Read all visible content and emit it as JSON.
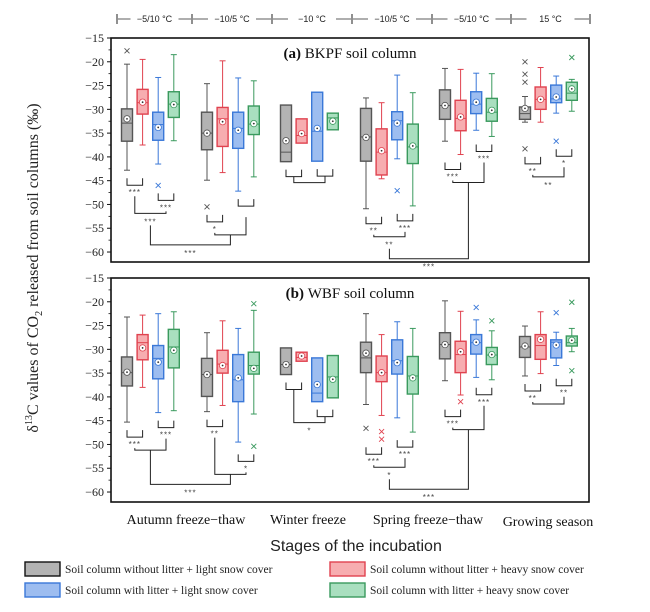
{
  "chart_data": {
    "type": "boxplot",
    "ylabel": "δ13C values of CO2 released from soil columns (‰)",
    "ylabel_parts": {
      "delta": "δ",
      "sup": "13",
      "mid": "C values of CO",
      "sub": "2",
      "tail": " released from soil columns (‰)"
    },
    "xlabel": "Stages of the incubation",
    "ylim": [
      -62,
      -15
    ],
    "yticks": [
      -15,
      -20,
      -25,
      -30,
      -35,
      -40,
      -45,
      -50,
      -55,
      -60
    ],
    "ytick_labels": [
      "−15",
      "−20",
      "−25",
      "−30",
      "−35",
      "−40",
      "−45",
      "−50",
      "−55",
      "−60"
    ],
    "stages": [
      "Autumn freeze−thaw",
      "Winter freeze",
      "Spring freeze−thaw",
      "Growing season"
    ],
    "temperature_periods": [
      "−5/10 °C",
      "−10/5 °C",
      "−10 °C",
      "−10/5 °C",
      "−5/10 °C",
      "15 °C"
    ],
    "series": [
      {
        "name": "Soil column without litter + light snow cover",
        "stroke": "#555555",
        "fill": "#b3b3b3"
      },
      {
        "name": "Soil column without litter + heavy snow cover",
        "stroke": "#e0424f",
        "fill": "#f7adb0"
      },
      {
        "name": "Soil column with litter + light snow cover",
        "stroke": "#3a78d8",
        "fill": "#9dbdf0"
      },
      {
        "name": "Soil column with litter + heavy snow cover",
        "stroke": "#3a9a5e",
        "fill": "#a9dfbf"
      }
    ],
    "panels": [
      {
        "label": "(a)",
        "title": "BKPF soil column",
        "groups": [
          {
            "period": "−5/10 °C",
            "boxes": [
              {
                "lo": -42.8,
                "q1": -36.7,
                "med": -32.9,
                "q3": -29.9,
                "hi": -20.5,
                "mean": -32.0,
                "out": [
                  -17.7
                ]
              },
              {
                "lo": -37.5,
                "q1": -31.0,
                "med": -28.6,
                "q3": -25.8,
                "hi": -19.5,
                "mean": -28.5,
                "out": []
              },
              {
                "lo": -41.5,
                "q1": -36.5,
                "med": -33.2,
                "q3": -30.6,
                "hi": -23.3,
                "mean": -33.8,
                "out": [
                  -46.0
                ]
              },
              {
                "lo": -36.6,
                "q1": -31.7,
                "med": -28.9,
                "q3": -26.3,
                "hi": -18.5,
                "mean": -29.0,
                "out": []
              }
            ]
          },
          {
            "period": "−10/5 °C",
            "boxes": [
              {
                "lo": -44.9,
                "q1": -38.5,
                "med": -35.0,
                "q3": -30.6,
                "hi": -24.6,
                "mean": -35.0,
                "out": [
                  -50.5
                ]
              },
              {
                "lo": -43.3,
                "q1": -37.8,
                "med": -32.0,
                "q3": -29.6,
                "hi": -19.8,
                "mean": -32.6,
                "out": []
              },
              {
                "lo": -47.2,
                "q1": -38.2,
                "med": -34.0,
                "q3": -30.6,
                "hi": -23.4,
                "mean": -34.4,
                "out": []
              },
              {
                "lo": -44.2,
                "q1": -35.3,
                "med": -33.1,
                "q3": -29.3,
                "hi": -24.0,
                "mean": -33.0,
                "out": []
              }
            ]
          },
          {
            "period": "−10 °C",
            "boxes": [
              {
                "lo": -41.0,
                "q1": -41.0,
                "med": -39.0,
                "q3": -29.1,
                "hi": -29.1,
                "mean": -36.6,
                "out": []
              },
              {
                "lo": -37.1,
                "q1": -37.1,
                "med": -35.5,
                "q3": -32.0,
                "hi": -32.0,
                "mean": -35.1,
                "out": []
              },
              {
                "lo": -40.9,
                "q1": -40.9,
                "med": -34.6,
                "q3": -26.4,
                "hi": -26.4,
                "mean": -34.0,
                "out": []
              },
              {
                "lo": -34.3,
                "q1": -34.3,
                "med": -31.8,
                "q3": -30.8,
                "hi": -30.8,
                "mean": -32.5,
                "out": []
              }
            ]
          },
          {
            "period": "−10/5 °C",
            "boxes": [
              {
                "lo": -50.9,
                "q1": -40.9,
                "med": -35.8,
                "q3": -29.8,
                "hi": -27.6,
                "mean": -35.9,
                "out": []
              },
              {
                "lo": -44.6,
                "q1": -43.8,
                "med": -39.0,
                "q3": -34.1,
                "hi": -28.6,
                "mean": -38.7,
                "out": []
              },
              {
                "lo": -40.4,
                "q1": -36.4,
                "med": -32.4,
                "q3": -30.5,
                "hi": -22.8,
                "mean": -32.9,
                "out": [
                  -47.1
                ]
              },
              {
                "lo": -50.3,
                "q1": -41.4,
                "med": -37.9,
                "q3": -33.1,
                "hi": -26.5,
                "mean": -37.7,
                "out": []
              }
            ]
          },
          {
            "period": "−5/10 °C",
            "boxes": [
              {
                "lo": -36.7,
                "q1": -32.1,
                "med": -29.2,
                "q3": -25.9,
                "hi": -21.4,
                "mean": -29.2,
                "out": []
              },
              {
                "lo": -39.5,
                "q1": -34.5,
                "med": -31.9,
                "q3": -28.1,
                "hi": -21.6,
                "mean": -31.6,
                "out": []
              },
              {
                "lo": -34.4,
                "q1": -30.9,
                "med": -28.9,
                "q3": -26.3,
                "hi": -22.4,
                "mean": -28.5,
                "out": []
              },
              {
                "lo": -35.7,
                "q1": -32.5,
                "med": -30.6,
                "q3": -27.7,
                "hi": -22.5,
                "mean": -30.2,
                "out": []
              }
            ]
          },
          {
            "period": "15 °C",
            "boxes": [
              {
                "lo": -32.7,
                "q1": -32.1,
                "med": -30.9,
                "q3": -29.5,
                "hi": -27.3,
                "mean": -29.8,
                "out": [
                  -20.0,
                  -22.6,
                  -24.3,
                  -38.3
                ]
              },
              {
                "lo": -32.7,
                "q1": -30.0,
                "med": -27.9,
                "q3": -25.3,
                "hi": -21.2,
                "mean": -27.9,
                "out": []
              },
              {
                "lo": -30.8,
                "q1": -28.6,
                "med": -27.8,
                "q3": -24.9,
                "hi": -23.0,
                "mean": -27.4,
                "out": [
                  -36.7
                ]
              },
              {
                "lo": -30.4,
                "q1": -28.1,
                "med": -26.6,
                "q3": -24.3,
                "hi": -23.7,
                "mean": -25.7,
                "out": [
                  -19.1
                ]
              }
            ]
          }
        ],
        "brackets": [
          {
            "a": [
              0,
              0,
              1
            ],
            "b": [
              0,
              2,
              3
            ],
            "pair_labels": [
              "***",
              "***"
            ],
            "label": "***"
          },
          {
            "a": [
              1,
              0,
              1
            ],
            "b": [
              1,
              2,
              3
            ],
            "pair_labels": [
              "*",
              ""
            ],
            "label": ""
          },
          {
            "a": [
              2,
              0,
              1
            ],
            "b": [
              2,
              2,
              3
            ],
            "pair_labels": [
              "",
              ""
            ],
            "label": ""
          },
          {
            "a": [
              3,
              0,
              1
            ],
            "b": [
              3,
              2,
              3
            ],
            "pair_labels": [
              "**",
              "***"
            ],
            "label": "**"
          },
          {
            "a": [
              4,
              0,
              1
            ],
            "b": [
              4,
              2,
              3
            ],
            "pair_labels": [
              "***",
              "***"
            ],
            "label": ""
          },
          {
            "a": [
              5,
              0,
              1
            ],
            "b": [
              5,
              2,
              3
            ],
            "pair_labels": [
              "**",
              "*"
            ],
            "label": "**"
          }
        ],
        "cross": [
          {
            "from": 0,
            "to": 1,
            "label": "***"
          },
          {
            "from": 3,
            "to": 4,
            "label": "***"
          }
        ]
      },
      {
        "label": "(b)",
        "title": "WBF soil column",
        "groups": [
          {
            "period": "−5/10 °C",
            "boxes": [
              {
                "lo": -45.3,
                "q1": -37.7,
                "med": -34.9,
                "q3": -31.6,
                "hi": -23.2,
                "mean": -34.8,
                "out": []
              },
              {
                "lo": -38.0,
                "q1": -32.2,
                "med": -28.6,
                "q3": -26.9,
                "hi": -22.8,
                "mean": -29.7,
                "out": []
              },
              {
                "lo": -43.3,
                "q1": -36.2,
                "med": -31.9,
                "q3": -29.2,
                "hi": -22.5,
                "mean": -32.7,
                "out": []
              },
              {
                "lo": -42.9,
                "q1": -33.9,
                "med": -29.5,
                "q3": -25.8,
                "hi": -22.1,
                "mean": -30.2,
                "out": []
              }
            ]
          },
          {
            "period": "−10/5 °C",
            "boxes": [
              {
                "lo": -43.1,
                "q1": -39.9,
                "med": -35.3,
                "q3": -31.9,
                "hi": -26.5,
                "mean": -35.3,
                "out": []
              },
              {
                "lo": -41.8,
                "q1": -35.0,
                "med": -33.1,
                "q3": -30.2,
                "hi": -24.0,
                "mean": -33.4,
                "out": []
              },
              {
                "lo": -49.5,
                "q1": -41.0,
                "med": -36.4,
                "q3": -31.1,
                "hi": -25.6,
                "mean": -36.0,
                "out": []
              },
              {
                "lo": -43.6,
                "q1": -35.2,
                "med": -33.4,
                "q3": -30.6,
                "hi": -21.8,
                "mean": -34.0,
                "out": [
                  -20.4,
                  -50.4
                ]
              }
            ]
          },
          {
            "period": "−10 °C",
            "boxes": [
              {
                "lo": -35.3,
                "q1": -35.3,
                "med": -33.2,
                "q3": -29.7,
                "hi": -29.7,
                "mean": -33.2,
                "out": []
              },
              {
                "lo": -32.5,
                "q1": -32.5,
                "med": -31.7,
                "q3": -30.6,
                "hi": -30.6,
                "mean": -31.4,
                "out": []
              },
              {
                "lo": -41.0,
                "q1": -41.0,
                "med": -39.2,
                "q3": -31.8,
                "hi": -31.8,
                "mean": -37.4,
                "out": []
              },
              {
                "lo": -40.2,
                "q1": -40.2,
                "med": -35.8,
                "q3": -31.3,
                "hi": -31.3,
                "mean": -36.3,
                "out": []
              }
            ]
          },
          {
            "period": "−10/5 °C",
            "boxes": [
              {
                "lo": -41.6,
                "q1": -34.9,
                "med": -31.8,
                "q3": -28.5,
                "hi": -22.5,
                "mean": -30.8,
                "out": [
                  -46.6
                ]
              },
              {
                "lo": -43.9,
                "q1": -36.8,
                "med": -34.9,
                "q3": -31.4,
                "hi": -26.9,
                "mean": -34.9,
                "out": [
                  -47.3,
                  -48.9
                ]
              },
              {
                "lo": -44.4,
                "q1": -35.2,
                "med": -32.4,
                "q3": -28.0,
                "hi": -24.2,
                "mean": -32.8,
                "out": []
              },
              {
                "lo": -47.4,
                "q1": -39.4,
                "med": -35.6,
                "q3": -31.5,
                "hi": -25.6,
                "mean": -36.0,
                "out": []
              }
            ]
          },
          {
            "period": "−5/10 °C",
            "boxes": [
              {
                "lo": -36.6,
                "q1": -32.0,
                "med": -29.0,
                "q3": -26.5,
                "hi": -19.8,
                "mean": -29.0,
                "out": []
              },
              {
                "lo": -39.6,
                "q1": -34.9,
                "med": -31.1,
                "q3": -28.3,
                "hi": -22.0,
                "mean": -30.5,
                "out": [
                  -41.0
                ]
              },
              {
                "lo": -35.9,
                "q1": -31.0,
                "med": -28.6,
                "q3": -26.9,
                "hi": -23.8,
                "mean": -28.5,
                "out": [
                  -21.2
                ]
              },
              {
                "lo": -36.4,
                "q1": -33.2,
                "med": -31.2,
                "q3": -29.6,
                "hi": -26.1,
                "mean": -31.1,
                "out": [
                  -24.0
                ]
              }
            ]
          },
          {
            "period": "15 °C",
            "boxes": [
              {
                "lo": -35.6,
                "q1": -31.7,
                "med": -29.5,
                "q3": -27.3,
                "hi": -25.1,
                "mean": -29.3,
                "out": []
              },
              {
                "lo": -35.1,
                "q1": -32.1,
                "med": -29.2,
                "q3": -26.9,
                "hi": -22.1,
                "mean": -27.9,
                "out": []
              },
              {
                "lo": -33.4,
                "q1": -31.8,
                "med": -28.5,
                "q3": -28.0,
                "hi": -26.4,
                "mean": -29.1,
                "out": [
                  -22.3
                ]
              },
              {
                "lo": -30.5,
                "q1": -29.3,
                "med": -28.6,
                "q3": -27.2,
                "hi": -25.6,
                "mean": -28.1,
                "out": [
                  -20.1,
                  -34.5
                ]
              }
            ]
          }
        ],
        "brackets": [
          {
            "a": [
              0,
              0,
              1
            ],
            "b": [
              0,
              2,
              3
            ],
            "pair_labels": [
              "***",
              "***"
            ],
            "label": ""
          },
          {
            "a": [
              1,
              0,
              1
            ],
            "b": [
              1,
              2,
              3
            ],
            "pair_labels": [
              "**",
              "*"
            ],
            "label": ""
          },
          {
            "a": [
              2,
              0,
              1
            ],
            "b": [
              2,
              2,
              3
            ],
            "pair_labels": [
              "",
              ""
            ],
            "label": "*"
          },
          {
            "a": [
              3,
              0,
              1
            ],
            "b": [
              3,
              2,
              3
            ],
            "pair_labels": [
              "***",
              "***"
            ],
            "label": "*"
          },
          {
            "a": [
              4,
              0,
              1
            ],
            "b": [
              4,
              2,
              3
            ],
            "pair_labels": [
              "***",
              "***"
            ],
            "label": ""
          },
          {
            "a": [
              5,
              0,
              1
            ],
            "b": [
              5,
              2,
              3
            ],
            "pair_labels": [
              "**",
              "**"
            ],
            "label": ""
          }
        ],
        "cross": [
          {
            "from": 0,
            "to": 1,
            "label": "***"
          },
          {
            "from": 3,
            "to": 4,
            "label": "***"
          }
        ]
      }
    ],
    "legend_placement": "bottom"
  }
}
